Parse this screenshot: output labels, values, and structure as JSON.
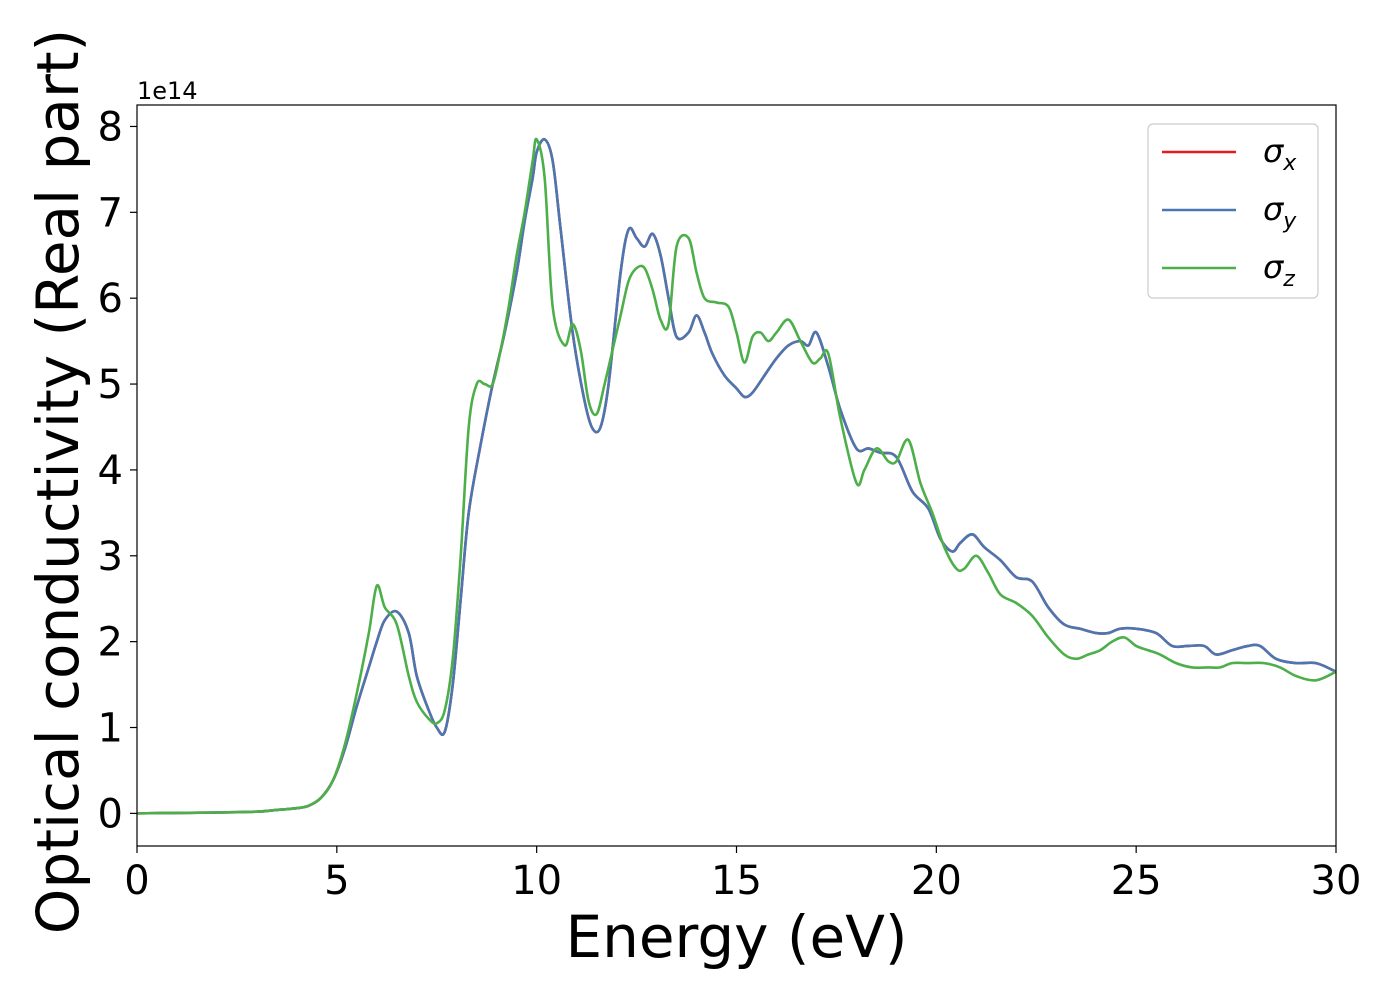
{
  "chart_data": {
    "type": "line",
    "xlabel": "Energy (eV)",
    "ylabel": "Optical conductivity (Real part)",
    "y_offset_label": "1e14",
    "xlim": [
      0,
      30
    ],
    "ylim": [
      -0.38,
      8.25
    ],
    "y_scale": 100000000000000.0,
    "grid": false,
    "legend_position": "top-right",
    "x_ticks": [
      0,
      5,
      10,
      15,
      20,
      25,
      30
    ],
    "x_tick_labels": [
      "0",
      "5",
      "10",
      "15",
      "20",
      "25",
      "30"
    ],
    "y_ticks": [
      0,
      1,
      2,
      3,
      4,
      5,
      6,
      7,
      8
    ],
    "y_tick_labels": [
      "0",
      "1",
      "2",
      "3",
      "4",
      "5",
      "6",
      "7",
      "8"
    ],
    "series": [
      {
        "name": "σx",
        "symbol": "σ",
        "subscript": "x",
        "color": "#e41a1c",
        "x": [
          0,
          1,
          2,
          3,
          3.5,
          4,
          4.3,
          4.6,
          4.9,
          5.2,
          5.5,
          5.8,
          6.0,
          6.2,
          6.5,
          6.8,
          7.0,
          7.3,
          7.5,
          7.7,
          7.9,
          8.1,
          8.3,
          8.6,
          8.9,
          9.2,
          9.5,
          9.7,
          9.9,
          10.0,
          10.2,
          10.4,
          10.6,
          10.9,
          11.2,
          11.4,
          11.6,
          11.8,
          12.1,
          12.3,
          12.5,
          12.7,
          12.9,
          13.1,
          13.3,
          13.5,
          13.8,
          14.0,
          14.2,
          14.4,
          14.7,
          15.0,
          15.2,
          15.4,
          15.7,
          16.0,
          16.3,
          16.6,
          16.8,
          17.0,
          17.3,
          17.6,
          18.0,
          18.3,
          18.6,
          19.0,
          19.4,
          19.8,
          20.1,
          20.4,
          20.6,
          20.9,
          21.2,
          21.6,
          22.0,
          22.4,
          22.8,
          23.2,
          23.6,
          24.0,
          24.3,
          24.6,
          25.0,
          25.5,
          25.9,
          26.3,
          26.7,
          27.0,
          27.4,
          27.8,
          28.1,
          28.5,
          29.0,
          29.5,
          30.0
        ],
        "values": [
          0,
          0.005,
          0.01,
          0.02,
          0.04,
          0.06,
          0.09,
          0.18,
          0.38,
          0.75,
          1.25,
          1.7,
          2.0,
          2.25,
          2.35,
          2.1,
          1.6,
          1.2,
          1.0,
          0.95,
          1.5,
          2.5,
          3.5,
          4.3,
          5.0,
          5.6,
          6.3,
          6.9,
          7.4,
          7.7,
          7.85,
          7.6,
          6.8,
          5.6,
          4.8,
          4.48,
          4.5,
          5.0,
          6.3,
          6.8,
          6.7,
          6.6,
          6.75,
          6.5,
          6.0,
          5.55,
          5.6,
          5.8,
          5.6,
          5.35,
          5.1,
          4.95,
          4.85,
          4.9,
          5.1,
          5.3,
          5.45,
          5.5,
          5.45,
          5.6,
          5.2,
          4.7,
          4.25,
          4.25,
          4.2,
          4.15,
          3.75,
          3.55,
          3.2,
          3.05,
          3.15,
          3.25,
          3.1,
          2.95,
          2.75,
          2.7,
          2.4,
          2.2,
          2.15,
          2.1,
          2.1,
          2.15,
          2.15,
          2.1,
          1.95,
          1.95,
          1.95,
          1.85,
          1.9,
          1.95,
          1.95,
          1.8,
          1.75,
          1.75,
          1.65
        ]
      },
      {
        "name": "σy",
        "symbol": "σ",
        "subscript": "y",
        "color": "#4a77b2",
        "x": [
          0,
          1,
          2,
          3,
          3.5,
          4,
          4.3,
          4.6,
          4.9,
          5.2,
          5.5,
          5.8,
          6.0,
          6.2,
          6.5,
          6.8,
          7.0,
          7.3,
          7.5,
          7.7,
          7.9,
          8.1,
          8.3,
          8.6,
          8.9,
          9.2,
          9.5,
          9.7,
          9.9,
          10.0,
          10.2,
          10.4,
          10.6,
          10.9,
          11.2,
          11.4,
          11.6,
          11.8,
          12.1,
          12.3,
          12.5,
          12.7,
          12.9,
          13.1,
          13.3,
          13.5,
          13.8,
          14.0,
          14.2,
          14.4,
          14.7,
          15.0,
          15.2,
          15.4,
          15.7,
          16.0,
          16.3,
          16.6,
          16.8,
          17.0,
          17.3,
          17.6,
          18.0,
          18.3,
          18.6,
          19.0,
          19.4,
          19.8,
          20.1,
          20.4,
          20.6,
          20.9,
          21.2,
          21.6,
          22.0,
          22.4,
          22.8,
          23.2,
          23.6,
          24.0,
          24.3,
          24.6,
          25.0,
          25.5,
          25.9,
          26.3,
          26.7,
          27.0,
          27.4,
          27.8,
          28.1,
          28.5,
          29.0,
          29.5,
          30.0
        ],
        "values": [
          0,
          0.005,
          0.01,
          0.02,
          0.04,
          0.06,
          0.09,
          0.18,
          0.38,
          0.75,
          1.25,
          1.7,
          2.0,
          2.25,
          2.35,
          2.1,
          1.6,
          1.2,
          1.0,
          0.95,
          1.5,
          2.5,
          3.5,
          4.3,
          5.0,
          5.6,
          6.3,
          6.9,
          7.4,
          7.7,
          7.85,
          7.6,
          6.8,
          5.6,
          4.8,
          4.48,
          4.5,
          5.0,
          6.3,
          6.8,
          6.7,
          6.6,
          6.75,
          6.5,
          6.0,
          5.55,
          5.6,
          5.8,
          5.6,
          5.35,
          5.1,
          4.95,
          4.85,
          4.9,
          5.1,
          5.3,
          5.45,
          5.5,
          5.45,
          5.6,
          5.2,
          4.7,
          4.25,
          4.25,
          4.2,
          4.15,
          3.75,
          3.55,
          3.2,
          3.05,
          3.15,
          3.25,
          3.1,
          2.95,
          2.75,
          2.7,
          2.4,
          2.2,
          2.15,
          2.1,
          2.1,
          2.15,
          2.15,
          2.1,
          1.95,
          1.95,
          1.95,
          1.85,
          1.9,
          1.95,
          1.95,
          1.8,
          1.75,
          1.75,
          1.65
        ]
      },
      {
        "name": "σz",
        "symbol": "σ",
        "subscript": "z",
        "color": "#4daf4a",
        "x": [
          0,
          1,
          2,
          3,
          3.5,
          4,
          4.3,
          4.6,
          4.9,
          5.2,
          5.5,
          5.8,
          6.0,
          6.2,
          6.5,
          6.8,
          7.0,
          7.3,
          7.5,
          7.7,
          7.9,
          8.1,
          8.3,
          8.5,
          8.7,
          8.9,
          9.1,
          9.3,
          9.5,
          9.7,
          9.9,
          10.0,
          10.2,
          10.4,
          10.7,
          10.9,
          11.1,
          11.3,
          11.5,
          11.7,
          11.9,
          12.1,
          12.3,
          12.5,
          12.7,
          12.9,
          13.1,
          13.3,
          13.5,
          13.8,
          14.0,
          14.2,
          14.5,
          14.8,
          15.0,
          15.2,
          15.4,
          15.6,
          15.8,
          16.0,
          16.3,
          16.6,
          16.9,
          17.1,
          17.3,
          17.6,
          18.0,
          18.2,
          18.5,
          18.8,
          19.0,
          19.3,
          19.6,
          19.9,
          20.2,
          20.5,
          20.7,
          21.0,
          21.3,
          21.6,
          22.0,
          22.4,
          22.8,
          23.2,
          23.5,
          23.8,
          24.1,
          24.4,
          24.7,
          25.0,
          25.3,
          25.6,
          26.0,
          26.4,
          26.8,
          27.1,
          27.4,
          27.8,
          28.2,
          28.6,
          29.0,
          29.5,
          30.0
        ],
        "values": [
          0,
          0.005,
          0.01,
          0.02,
          0.04,
          0.06,
          0.09,
          0.18,
          0.38,
          0.8,
          1.4,
          2.1,
          2.65,
          2.4,
          2.2,
          1.6,
          1.3,
          1.1,
          1.05,
          1.2,
          1.8,
          3.0,
          4.5,
          5.0,
          5.0,
          5.0,
          5.4,
          5.9,
          6.5,
          7.0,
          7.6,
          7.85,
          7.4,
          5.9,
          5.45,
          5.7,
          5.4,
          4.8,
          4.65,
          5.0,
          5.4,
          5.8,
          6.2,
          6.35,
          6.35,
          6.1,
          5.75,
          5.7,
          6.6,
          6.7,
          6.3,
          6.0,
          5.95,
          5.9,
          5.6,
          5.25,
          5.55,
          5.6,
          5.5,
          5.6,
          5.75,
          5.5,
          5.25,
          5.3,
          5.35,
          4.6,
          3.85,
          4.0,
          4.25,
          4.1,
          4.1,
          4.35,
          3.85,
          3.5,
          3.1,
          2.85,
          2.85,
          3.0,
          2.8,
          2.55,
          2.45,
          2.3,
          2.05,
          1.85,
          1.8,
          1.85,
          1.9,
          2.0,
          2.05,
          1.95,
          1.9,
          1.85,
          1.75,
          1.7,
          1.7,
          1.7,
          1.75,
          1.75,
          1.75,
          1.7,
          1.6,
          1.55,
          1.65
        ]
      }
    ]
  }
}
